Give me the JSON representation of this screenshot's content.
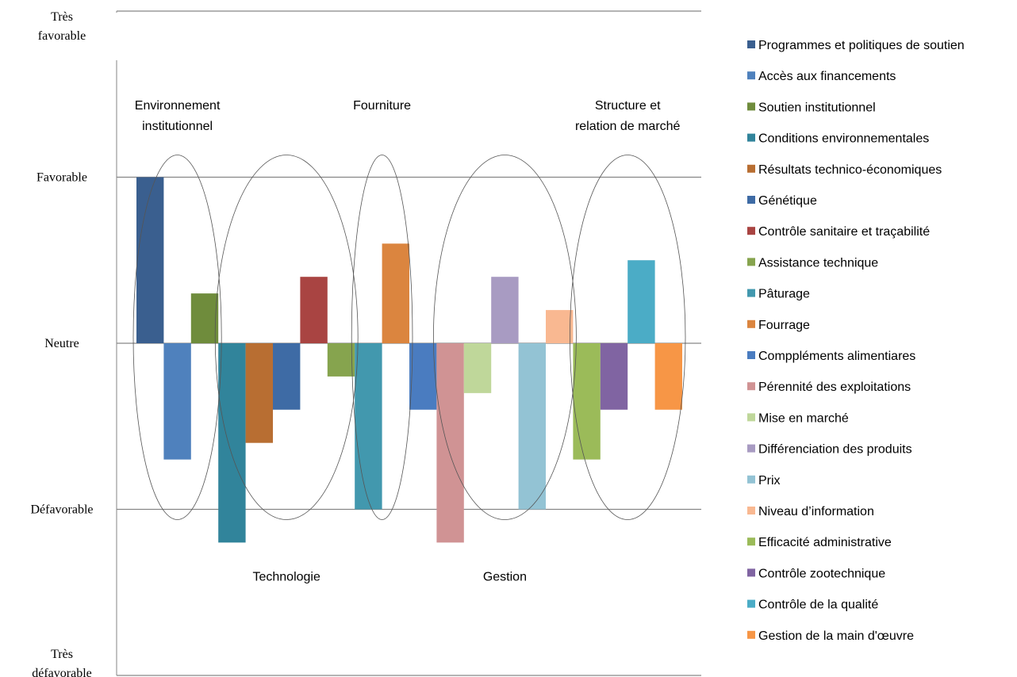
{
  "chart_data": {
    "type": "bar",
    "ylim": [
      -2,
      2
    ],
    "y_tick_labels": [
      {
        "value": 2,
        "lines": [
          "Très",
          "favorable"
        ]
      },
      {
        "value": 1,
        "lines": [
          "Favorable"
        ]
      },
      {
        "value": 0,
        "lines": [
          "Neutre"
        ]
      },
      {
        "value": -1,
        "lines": [
          "Défavorable"
        ]
      },
      {
        "value": -2,
        "lines": [
          "Très",
          "défavorable"
        ]
      }
    ],
    "grid": true,
    "legend_position": "right",
    "series": [
      {
        "name": "Programmes et politiques de  soutien",
        "value": 1.0,
        "color": "#3A5F8F"
      },
      {
        "name": "Accès aux financements",
        "value": -0.7,
        "color": "#4F81BD"
      },
      {
        "name": "Soutien institutionnel",
        "value": 0.3,
        "color": "#6F8C3C"
      },
      {
        "name": "Conditions environnementales",
        "value": -1.2,
        "color": "#31849B"
      },
      {
        "name": "Résultats technico-économiques",
        "value": -0.6,
        "color": "#B86E32"
      },
      {
        "name": "Génétique",
        "value": -0.4,
        "color": "#3E6BA5"
      },
      {
        "name": "Contrôle sanitaire et traçabilité",
        "value": 0.4,
        "color": "#A94442"
      },
      {
        "name": "Assistance technique",
        "value": -0.2,
        "color": "#86A44E"
      },
      {
        "name": "Pâturage",
        "value": -1.0,
        "color": "#4298AE"
      },
      {
        "name": "Fourrage",
        "value": 0.6,
        "color": "#DB853F"
      },
      {
        "name": "Comppléments alimentiares",
        "value": -0.4,
        "color": "#4A7CC0"
      },
      {
        "name": "Pérennité des exploitations",
        "value": -1.2,
        "color": "#D09394"
      },
      {
        "name": "Mise en marché",
        "value": -0.3,
        "color": "#BFD79A"
      },
      {
        "name": "Différenciation des produits",
        "value": 0.4,
        "color": "#A89BC2"
      },
      {
        "name": "Prix",
        "value": -1.0,
        "color": "#93C3D4"
      },
      {
        "name": "Niveau d’information",
        "value": 0.2,
        "color": "#F9B891"
      },
      {
        "name": "Efficacité administrative",
        "value": -0.7,
        "color": "#9BBB59"
      },
      {
        "name": "Contrôle zootechnique",
        "value": -0.4,
        "color": "#8064A2"
      },
      {
        "name": "Contrôle de la qualité",
        "value": 0.5,
        "color": "#4BACC6"
      },
      {
        "name": "Gestion de la main d'œuvre",
        "value": -0.4,
        "color": "#F79646"
      }
    ],
    "group_annotations": [
      {
        "label_lines": [
          "Environnement",
          "institutionnel"
        ],
        "position": "top",
        "bars": [
          0,
          2
        ]
      },
      {
        "label_lines": [
          "Technologie"
        ],
        "position": "bottom",
        "bars": [
          3,
          7
        ]
      },
      {
        "label_lines": [
          "Fourniture"
        ],
        "position": "top",
        "bars": [
          8,
          9
        ]
      },
      {
        "label_lines": [
          "Gestion"
        ],
        "position": "bottom",
        "bars": [
          11,
          15
        ]
      },
      {
        "label_lines": [
          "Structure et",
          "relation de marché"
        ],
        "position": "top",
        "bars": [
          16,
          19
        ]
      }
    ]
  }
}
